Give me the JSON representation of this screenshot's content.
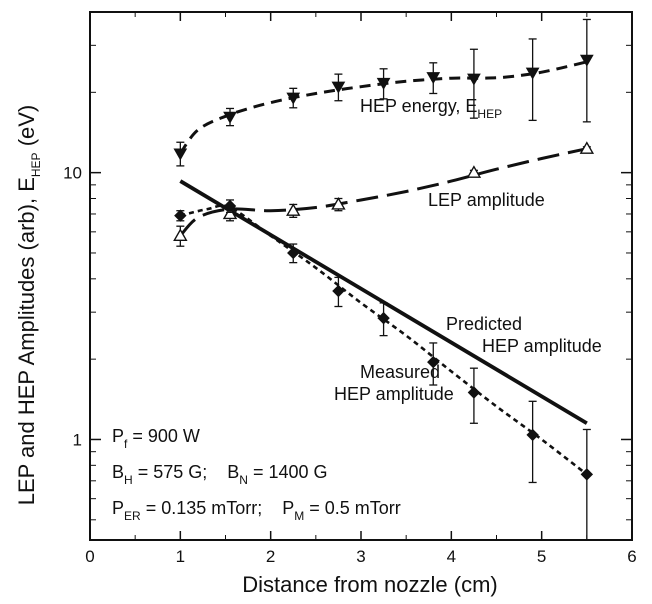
{
  "chart_data": {
    "type": "scatter",
    "xlabel": "Distance from nozzle (cm)",
    "ylabel": {
      "prefix": "LEP and HEP Amplitudes (arb), E",
      "sub": "HEP",
      "suffix": " (eV)"
    },
    "x_ticks": [
      "0",
      "1",
      "2",
      "3",
      "4",
      "5",
      "6"
    ],
    "y_ticks": [
      "1",
      "10"
    ],
    "xlim": [
      0,
      6
    ],
    "ylim": [
      0.42,
      40
    ],
    "yscale": "log",
    "series": [
      {
        "marker": "triangle-down-filled",
        "x": [
          1.0,
          1.55,
          2.25,
          2.75,
          3.25,
          3.8,
          4.25,
          4.9,
          5.5
        ],
        "y": [
          11.8,
          16.2,
          19.1,
          21.0,
          21.7,
          22.8,
          22.5,
          23.7,
          26.5
        ],
        "err": [
          1.2,
          1.2,
          1.6,
          2.4,
          2.8,
          3.0,
          6.5,
          8.0,
          11.0
        ]
      },
      {
        "marker": "triangle-up-open",
        "x": [
          1.0,
          1.55,
          2.25,
          2.75,
          4.25,
          5.5
        ],
        "y": [
          5.8,
          7.0,
          7.2,
          7.6,
          10.0,
          12.3
        ],
        "err": [
          0.5,
          0.4,
          0.4,
          0.4,
          0.2,
          0.2
        ]
      },
      {
        "marker": "diamond-filled",
        "x": [
          1.0,
          1.55,
          2.25,
          2.75,
          3.25,
          3.8,
          4.25,
          4.9,
          5.5
        ],
        "y": [
          6.9,
          7.5,
          5.0,
          3.6,
          2.85,
          1.95,
          1.5,
          1.04,
          0.74
        ],
        "err": [
          0.3,
          0.4,
          0.4,
          0.45,
          0.4,
          0.35,
          0.35,
          0.35,
          0.35
        ]
      }
    ],
    "curves": [
      {
        "style": "dashed",
        "x": [
          1.0,
          1.2,
          1.55,
          2.0,
          2.5,
          3.0,
          3.5,
          4.0,
          4.3,
          4.6,
          5.0,
          5.5
        ],
        "y": [
          11.8,
          14.5,
          16.5,
          18.3,
          19.8,
          21.0,
          22.0,
          22.6,
          22.6,
          22.8,
          23.8,
          26.0
        ]
      },
      {
        "style": "long-dashed",
        "x": [
          1.0,
          1.2,
          1.55,
          2.0,
          2.5,
          3.0,
          3.5,
          4.0,
          4.5,
          5.0,
          5.5
        ],
        "y": [
          5.8,
          6.8,
          7.3,
          7.2,
          7.4,
          7.9,
          8.5,
          9.3,
          10.3,
          11.3,
          12.3
        ]
      },
      {
        "style": "short-dashed",
        "x": [
          1.0,
          1.3,
          1.55,
          2.0,
          2.5,
          3.0,
          3.5,
          4.0,
          4.5,
          5.0,
          5.5
        ],
        "y": [
          6.9,
          7.3,
          7.4,
          5.8,
          4.4,
          3.25,
          2.45,
          1.8,
          1.33,
          1.0,
          0.74
        ]
      },
      {
        "style": "solid",
        "x": [
          1.0,
          5.5
        ],
        "y": [
          9.3,
          1.15
        ]
      }
    ],
    "annotations": {
      "hep_energy": {
        "main": "HEP energy, E",
        "sub": "HEP"
      },
      "lep_amplitude": "LEP amplitude",
      "predicted": [
        "Predicted",
        "HEP amplitude"
      ],
      "measured": [
        "Measured",
        "HEP amplitude"
      ]
    },
    "conditions": {
      "line1": {
        "p": "P",
        "p_sub": "f",
        "p_val": " = 900 W"
      },
      "line2": {
        "bh": "B",
        "bh_sub": "H",
        "bh_val": " = 575 G;",
        "bn": "B",
        "bn_sub": "N",
        "bn_val": " = 1400 G"
      },
      "line3": {
        "per": "P",
        "per_sub": "ER",
        "per_val": " = 0.135 mTorr;",
        "pm": "P",
        "pm_sub": "M",
        "pm_val": " = 0.5 mTorr"
      }
    }
  }
}
